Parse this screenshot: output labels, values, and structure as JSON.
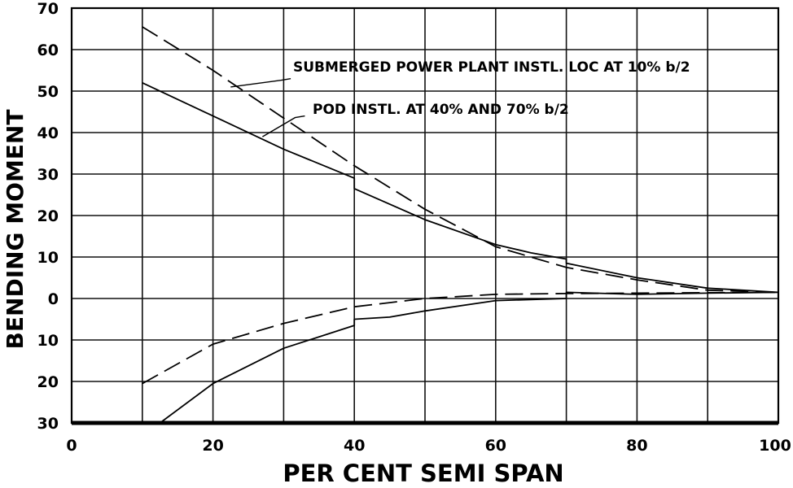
{
  "chart_data": {
    "type": "line",
    "xlabel": "PER CENT SEMI SPAN",
    "ylabel": "BENDING MOMENT",
    "xlim": [
      0,
      100
    ],
    "ylim": [
      -30,
      70
    ],
    "x_ticks": [
      "0",
      "20",
      "40",
      "60",
      "80",
      "100"
    ],
    "y_ticks": [
      {
        "value": 70,
        "label": "70"
      },
      {
        "value": 60,
        "label": "60"
      },
      {
        "value": 50,
        "label": "50"
      },
      {
        "value": 40,
        "label": "40"
      },
      {
        "value": 30,
        "label": "30"
      },
      {
        "value": 20,
        "label": "20"
      },
      {
        "value": 10,
        "label": "10"
      },
      {
        "value": 0,
        "label": "0"
      },
      {
        "value": -10,
        "label": "10"
      },
      {
        "value": -20,
        "label": "20"
      },
      {
        "value": -30,
        "label": "30"
      }
    ],
    "grid": true,
    "annotations": [
      {
        "text": "SUBMERGED POWER PLANT INSTL. LOC AT 10% b/2"
      },
      {
        "text": "POD INSTL. AT 40% AND 70% b/2"
      }
    ],
    "series": [
      {
        "style": "dashed",
        "x": [
          10,
          20,
          30,
          40,
          50,
          60,
          70,
          80,
          90,
          100
        ],
        "y": [
          65.5,
          55,
          43.5,
          32,
          21.5,
          12.5,
          7.5,
          4.5,
          2,
          1.5
        ]
      },
      {
        "style": "solid",
        "x": [
          10,
          20,
          30,
          40,
          40,
          50,
          60,
          65,
          70,
          70,
          80,
          90,
          100
        ],
        "y": [
          52,
          44,
          36,
          29,
          26.5,
          19,
          13,
          11,
          9.5,
          8.5,
          5,
          2.5,
          1.5
        ]
      },
      {
        "style": "dashed",
        "x": [
          10,
          20,
          30,
          40,
          50,
          60,
          70,
          80,
          90,
          100
        ],
        "y": [
          -20.5,
          -11,
          -6,
          -2,
          0,
          1,
          1.2,
          1.3,
          1.4,
          1.5
        ]
      },
      {
        "style": "solid",
        "x": [
          12.5,
          20,
          30,
          40,
          40,
          45,
          50,
          60,
          70,
          70,
          80,
          90,
          100
        ],
        "y": [
          -30,
          -20.5,
          -12,
          -6.5,
          -5,
          -4.5,
          -3,
          -0.5,
          0,
          1.5,
          1,
          1.3,
          1.5
        ]
      }
    ],
    "leader_lines": [
      {
        "from": [
          31,
          53
        ],
        "to": [
          22.5,
          51
        ]
      },
      {
        "from": [
          33,
          44
        ],
        "to": [
          27,
          39
        ]
      }
    ]
  }
}
